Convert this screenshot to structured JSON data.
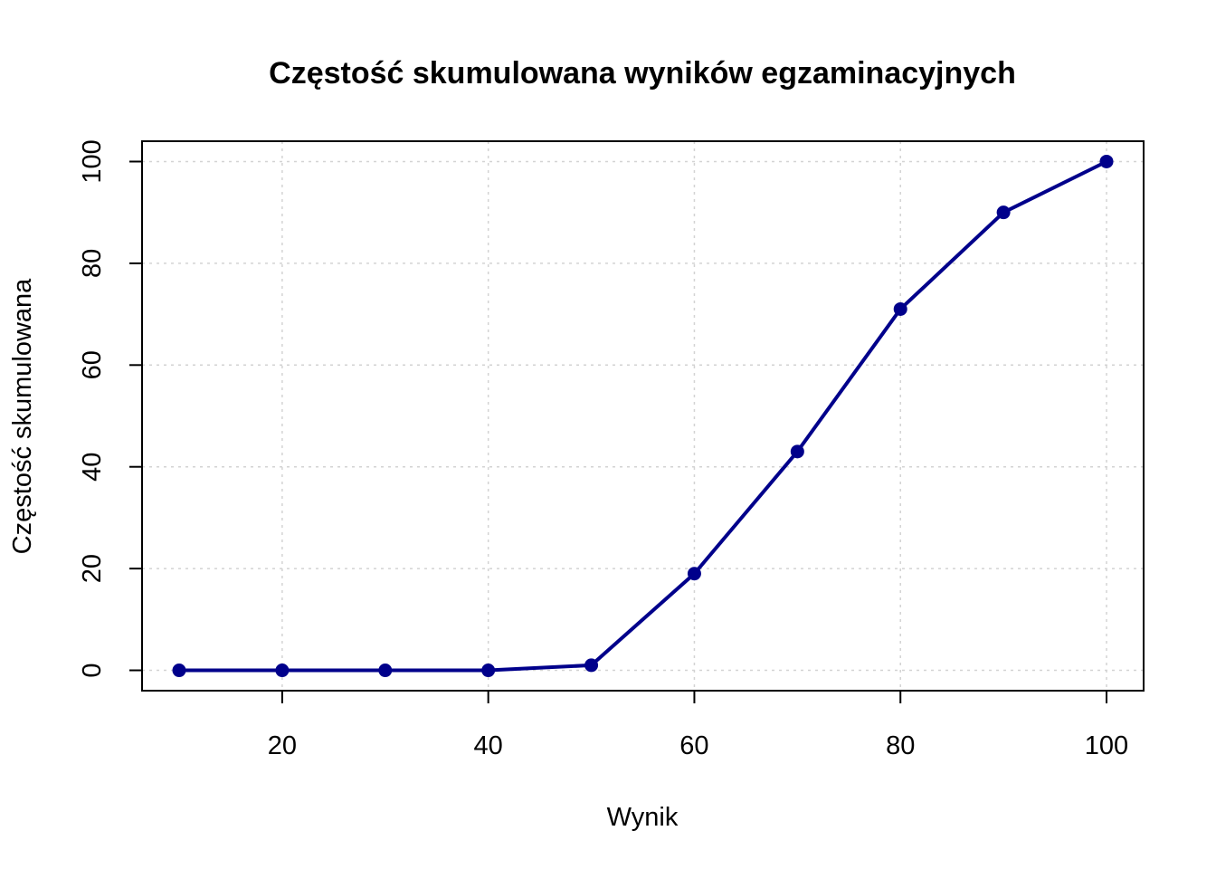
{
  "chart_data": {
    "type": "line",
    "title": "Częstość skumulowana wyników egzaminacyjnych",
    "xlabel": "Wynik",
    "ylabel": "Częstość skumulowana",
    "x": [
      10,
      20,
      30,
      40,
      50,
      60,
      70,
      80,
      90,
      100
    ],
    "series": [
      {
        "values": [
          0,
          0,
          0,
          0,
          1,
          19,
          43,
          71,
          90,
          100
        ],
        "color": "#00008b"
      }
    ],
    "xlim": [
      6.4,
      103.6
    ],
    "ylim": [
      -4,
      104
    ],
    "xticks": [
      20,
      40,
      60,
      80,
      100
    ],
    "yticks": [
      0,
      20,
      40,
      60,
      80,
      100
    ],
    "xtick_labels": [
      "20",
      "40",
      "60",
      "80",
      "100"
    ],
    "ytick_labels": [
      "0",
      "20",
      "40",
      "60",
      "80",
      "100"
    ],
    "grid": true,
    "marker": "filled-circle",
    "line_style": "solid"
  }
}
